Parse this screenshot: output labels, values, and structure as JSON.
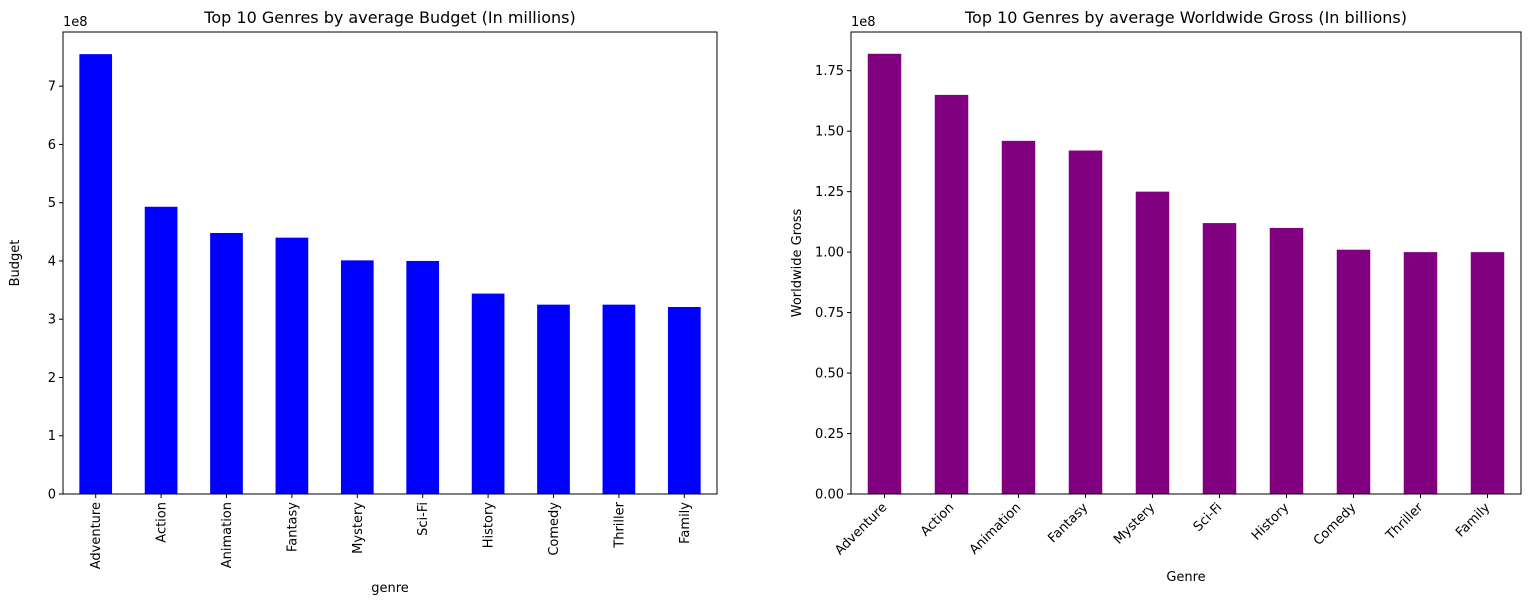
{
  "chart_data": [
    {
      "type": "bar",
      "title": "Top 10 Genres by average Budget (In millions)",
      "xlabel": "genre",
      "ylabel": "Budget",
      "offset_text": "1e8",
      "categories": [
        "Adventure",
        "Action",
        "Animation",
        "Fantasy",
        "Mystery",
        "Sci-Fi",
        "History",
        "Comedy",
        "Thriller",
        "Family"
      ],
      "values": [
        755000000,
        493000000,
        448000000,
        440000000,
        401000000,
        400000000,
        344000000,
        325000000,
        325000000,
        321000000
      ],
      "ylim": [
        0,
        793000000
      ],
      "yticks": [
        0,
        100000000,
        200000000,
        300000000,
        400000000,
        500000000,
        600000000,
        700000000
      ],
      "ytick_labels": [
        "0",
        "1",
        "2",
        "3",
        "4",
        "5",
        "6",
        "7"
      ],
      "color": "#0000ff",
      "xtick_rotation": 90,
      "grid": false
    },
    {
      "type": "bar",
      "title": "Top 10 Genres by average Worldwide Gross (In billions)",
      "xlabel": "Genre",
      "ylabel": "Worldwide Gross",
      "offset_text": "1e8",
      "categories": [
        "Adventure",
        "Action",
        "Animation",
        "Fantasy",
        "Mystery",
        "Sci-Fi",
        "History",
        "Comedy",
        "Thriller",
        "Family"
      ],
      "values": [
        182000000,
        165000000,
        146000000,
        142000000,
        125000000,
        112000000,
        110000000,
        101000000,
        100000000,
        100000000
      ],
      "ylim": [
        0,
        191000000
      ],
      "yticks": [
        0,
        25000000,
        50000000,
        75000000,
        100000000,
        125000000,
        150000000,
        175000000
      ],
      "ytick_labels": [
        "0.00",
        "0.25",
        "0.50",
        "0.75",
        "1.00",
        "1.25",
        "1.50",
        "1.75"
      ],
      "color": "#800080",
      "xtick_rotation": 45,
      "grid": false
    }
  ]
}
